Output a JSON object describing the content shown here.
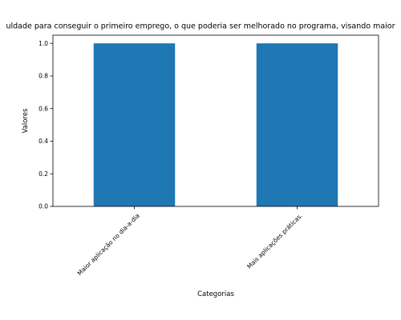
{
  "chart_data": {
    "type": "bar",
    "title": "uldade para conseguir o primeiro emprego, o que poderia ser melhorado no programa, visando maior",
    "xlabel": "Categorias",
    "ylabel": "Valores",
    "categories": [
      "Maior aplicação no dia-a-dia",
      "Mais aplicações práticas."
    ],
    "values": [
      1.0,
      1.0
    ],
    "ylim": [
      0,
      1.05
    ],
    "yticks": [
      "0.0",
      "0.2",
      "0.4",
      "0.6",
      "0.8",
      "1.0"
    ],
    "grid": false,
    "bar_color": "#1f77b4"
  }
}
